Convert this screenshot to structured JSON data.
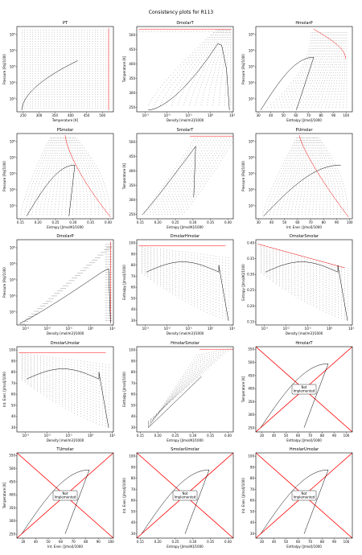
{
  "figure": {
    "title": "Consistency plots for R113"
  },
  "not_implemented_label": "Not\nImplemented",
  "colors": {
    "frame": "#000000",
    "phase": "#000000",
    "points": "#000000",
    "red": "#ff0000"
  },
  "chart_data": [
    {
      "type": "scatter",
      "title": "PT",
      "xlabel": "Temperature [K]",
      "ylabel": "Pressure [Pa]/1000",
      "xlim": [
        230,
        535
      ],
      "xticks": [
        "250",
        "300",
        "350",
        "400",
        "450",
        "500"
      ],
      "ylog": true,
      "yticks_exp": [
        1,
        2,
        3,
        4,
        5
      ],
      "ylim_exp": [
        0.2,
        5.5
      ]
    },
    {
      "type": "scatter",
      "title": "DmolarT",
      "xlabel": "Density [mol/m3]/1000",
      "ylabel": "Temperature [K]",
      "xlog": true,
      "xticks_exp": [
        -3,
        -2,
        -1,
        0,
        1
      ],
      "xlim_exp": [
        -3.4,
        1.05
      ],
      "ylim": [
        235,
        530
      ],
      "yticks": [
        "250",
        "300",
        "350",
        "400",
        "450",
        "500"
      ]
    },
    {
      "type": "scatter",
      "title": "HmolarP",
      "xlabel": "Enthalpy [J/mol]/1000",
      "ylabel": "Pressure [Pa]/1000",
      "xlim": [
        28,
        105
      ],
      "xticks": [
        "30",
        "40",
        "50",
        "60",
        "70",
        "80",
        "90",
        "100"
      ],
      "ylog": true,
      "yticks_exp": [
        1,
        2,
        3,
        4,
        5
      ],
      "ylim_exp": [
        0.2,
        5.5
      ]
    },
    {
      "type": "scatter",
      "title": "PSmolar",
      "xlabel": "Entropy [J/mol/K]/1000",
      "ylabel": "Pressure [Pa]/1000",
      "xlim": [
        0.14,
        0.415
      ],
      "xticks": [
        "0.15",
        "0.20",
        "0.25",
        "0.30",
        "0.35",
        "0.40"
      ],
      "ylog": true,
      "yticks_exp": [
        1,
        2,
        3,
        4,
        5
      ],
      "ylim_exp": [
        0.2,
        5.5
      ]
    },
    {
      "type": "scatter",
      "title": "SmolarT",
      "xlabel": "Entropy [J/mol/K]/1000",
      "ylabel": "Temperature [K]",
      "xlim": [
        0.14,
        0.415
      ],
      "xticks": [
        "0.15",
        "0.20",
        "0.25",
        "0.30",
        "0.35",
        "0.40"
      ],
      "ylim": [
        235,
        530
      ],
      "yticks": [
        "250",
        "300",
        "350",
        "400",
        "450",
        "500"
      ]
    },
    {
      "type": "scatter",
      "title": "PUmolar",
      "xlabel": "Int. Ener. [J/mol]/1000",
      "ylabel": "Pressure [Pa]/1000",
      "xlim": [
        28,
        102
      ],
      "xticks": [
        "30",
        "40",
        "50",
        "60",
        "70",
        "80",
        "90",
        "100"
      ],
      "ylog": true,
      "yticks_exp": [
        1,
        2,
        3,
        4,
        5
      ],
      "ylim_exp": [
        0.2,
        5.5
      ]
    },
    {
      "type": "scatter",
      "title": "DmolarP",
      "xlabel": "Density [mol/m3]/1000",
      "ylabel": "Pressure [Pa]/1000",
      "xlog": true,
      "xticks_exp": [
        -3,
        -2,
        -1,
        0,
        1
      ],
      "xlim_exp": [
        -3.4,
        1.05
      ],
      "ylog": true,
      "yticks_exp": [
        1,
        2,
        3,
        4,
        5
      ],
      "ylim_exp": [
        0.2,
        5.5
      ]
    },
    {
      "type": "scatter",
      "title": "DmolarHmolar",
      "xlabel": "Density [mol/m3]/1000",
      "ylabel": "Enthalpy [J/mol]/1000",
      "xlog": true,
      "xticks_exp": [
        -3,
        -2,
        -1,
        0,
        1
      ],
      "xlim_exp": [
        -3.4,
        1.05
      ],
      "ylim": [
        26,
        103
      ],
      "yticks": [
        "30",
        "40",
        "50",
        "60",
        "70",
        "80",
        "90",
        "100"
      ]
    },
    {
      "type": "scatter",
      "title": "DmolarSmolar",
      "xlabel": "Density [mol/m3]/1000",
      "ylabel": "Entropy [J/mol/K]/1000",
      "xlog": true,
      "xticks_exp": [
        -3,
        -2,
        -1,
        0,
        1
      ],
      "xlim_exp": [
        -3.4,
        1.05
      ],
      "ylim": [
        0.14,
        0.41
      ],
      "yticks": [
        "0.15",
        "0.20",
        "0.25",
        "0.30",
        "0.35",
        "0.40"
      ]
    },
    {
      "type": "scatter",
      "title": "DmolarUmolar",
      "xlabel": "Density [mol/m3]/1000",
      "ylabel": "Int. Ener. [J/mol]/1000",
      "xlog": true,
      "xticks_exp": [
        -3,
        -2,
        -1,
        0,
        1
      ],
      "xlim_exp": [
        -3.4,
        1.05
      ],
      "ylim": [
        26,
        103
      ],
      "yticks": [
        "30",
        "40",
        "50",
        "60",
        "70",
        "80",
        "90",
        "100"
      ]
    },
    {
      "type": "scatter",
      "title": "HmolarSmolar",
      "xlabel": "Entropy [J/mol/K]/1000",
      "ylabel": "Enthalpy [J/mol]/1000",
      "xlim": [
        0.14,
        0.415
      ],
      "xticks": [
        "0.15",
        "0.20",
        "0.25",
        "0.30",
        "0.35",
        "0.40"
      ],
      "ylim": [
        26,
        103
      ],
      "yticks": [
        "30",
        "40",
        "50",
        "60",
        "70",
        "80",
        "90",
        "100"
      ]
    },
    {
      "type": "scatter",
      "title": "HmolarT",
      "xlabel": "Enthalpy [J/mol]/1000",
      "ylabel": "Temperature [K]",
      "xlim": [
        25,
        105
      ],
      "xticks": [
        "30",
        "40",
        "50",
        "60",
        "70",
        "80",
        "90",
        "100"
      ],
      "ylim": [
        235,
        560
      ],
      "yticks": [
        "250",
        "300",
        "350",
        "400",
        "450",
        "500",
        "550"
      ],
      "not_implemented": true
    },
    {
      "type": "scatter",
      "title": "TUmolar",
      "xlabel": "Int. Ener. [J/mol]/1000",
      "ylabel": "Temperature [K]",
      "xlim": [
        25,
        102
      ],
      "xticks": [
        "30",
        "40",
        "50",
        "60",
        "70",
        "80",
        "90",
        "100"
      ],
      "ylim": [
        235,
        560
      ],
      "yticks": [
        "250",
        "300",
        "350",
        "400",
        "450",
        "500",
        "550"
      ],
      "not_implemented": true
    },
    {
      "type": "scatter",
      "title": "SmolarUmolar",
      "xlabel": "Entropy [J/mol/K]/1000",
      "ylabel": "Int. Ener. [J/mol]/1000",
      "xlim": [
        0.14,
        0.415
      ],
      "xticks": [
        "0.15",
        "0.20",
        "0.25",
        "0.30",
        "0.35",
        "0.40"
      ],
      "ylim": [
        26,
        103
      ],
      "yticks": [
        "30",
        "40",
        "50",
        "60",
        "70",
        "80",
        "90",
        "100"
      ],
      "not_implemented": true
    },
    {
      "type": "scatter",
      "title": "HmolarUmolar",
      "xlabel": "Enthalpy [J/mol]/1000",
      "ylabel": "Int. Ener. [J/mol]/1000",
      "xlim": [
        25,
        105
      ],
      "xticks": [
        "30",
        "40",
        "50",
        "60",
        "70",
        "80",
        "90",
        "100"
      ],
      "ylim": [
        26,
        103
      ],
      "yticks": [
        "30",
        "40",
        "50",
        "60",
        "70",
        "80",
        "90",
        "100"
      ],
      "not_implemented": true
    }
  ]
}
